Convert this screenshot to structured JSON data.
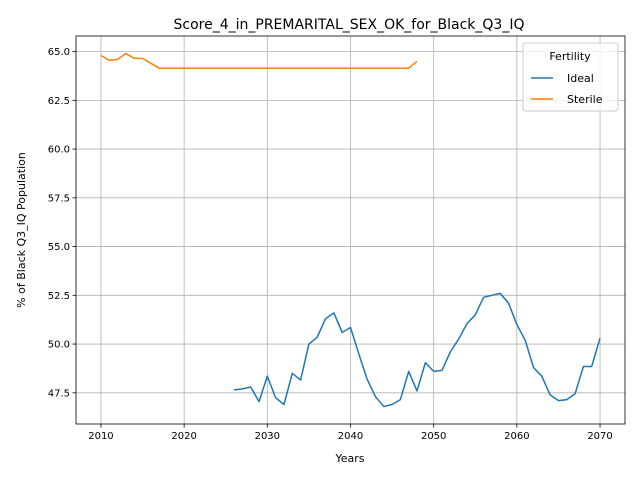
{
  "chart_data": {
    "type": "line",
    "title": "Score_4_in_PREMARITAL_SEX_OK_for_Black_Q3_IQ",
    "xlabel": "Years",
    "ylabel": "% of Black Q3_IQ Population",
    "xlim": [
      2007,
      2073
    ],
    "ylim": [
      45.9,
      65.8
    ],
    "xticks": [
      2010,
      2020,
      2030,
      2040,
      2050,
      2060,
      2070
    ],
    "xtick_labels": [
      "2010",
      "2020",
      "2030",
      "2040",
      "2050",
      "2060",
      "2070"
    ],
    "yticks": [
      47.5,
      50.0,
      52.5,
      55.0,
      57.5,
      60.0,
      62.5,
      65.0
    ],
    "ytick_labels": [
      "47.5",
      "50.0",
      "52.5",
      "55.0",
      "57.5",
      "60.0",
      "62.5",
      "65.0"
    ],
    "grid": true,
    "legend": {
      "title": "Fertility",
      "placement": "top-right"
    },
    "series": [
      {
        "name": "Ideal",
        "color": "#1f77b4",
        "x": [
          2026,
          2027,
          2028,
          2029,
          2030,
          2031,
          2032,
          2033,
          2034,
          2035,
          2036,
          2037,
          2038,
          2039,
          2040,
          2041,
          2042,
          2043,
          2044,
          2045,
          2046,
          2047,
          2048,
          2049,
          2050,
          2051,
          2052,
          2053,
          2054,
          2055,
          2056,
          2057,
          2058,
          2059,
          2060,
          2061,
          2062,
          2063,
          2064,
          2065,
          2066,
          2067,
          2068,
          2069,
          2070
        ],
        "y": [
          47.65,
          47.7,
          47.8,
          47.05,
          48.35,
          47.25,
          46.9,
          48.5,
          48.15,
          50.0,
          50.35,
          51.3,
          51.6,
          50.6,
          50.85,
          49.5,
          48.2,
          47.3,
          46.8,
          46.9,
          47.15,
          48.6,
          47.6,
          49.05,
          48.6,
          48.65,
          49.6,
          50.25,
          51.05,
          51.5,
          52.4,
          52.5,
          52.6,
          52.1,
          51.0,
          50.2,
          48.8,
          48.35,
          47.4,
          47.1,
          47.15,
          47.45,
          48.85,
          48.85,
          50.3
        ]
      },
      {
        "name": "Sterile",
        "color": "#ff7f0e",
        "x": [
          2010,
          2011,
          2012,
          2013,
          2014,
          2015,
          2016,
          2017,
          2018,
          2019,
          2020,
          2021,
          2022,
          2023,
          2024,
          2025,
          2026,
          2027,
          2028,
          2029,
          2030,
          2031,
          2032,
          2033,
          2034,
          2035,
          2036,
          2037,
          2038,
          2039,
          2040,
          2041,
          2042,
          2043,
          2044,
          2045,
          2046,
          2047,
          2048
        ],
        "y": [
          64.8,
          64.55,
          64.6,
          64.9,
          64.65,
          64.65,
          64.4,
          64.15,
          64.15,
          64.15,
          64.15,
          64.15,
          64.15,
          64.15,
          64.15,
          64.15,
          64.15,
          64.15,
          64.15,
          64.15,
          64.15,
          64.15,
          64.15,
          64.15,
          64.15,
          64.15,
          64.15,
          64.15,
          64.15,
          64.15,
          64.15,
          64.15,
          64.15,
          64.15,
          64.15,
          64.15,
          64.15,
          64.15,
          64.5
        ]
      }
    ]
  }
}
